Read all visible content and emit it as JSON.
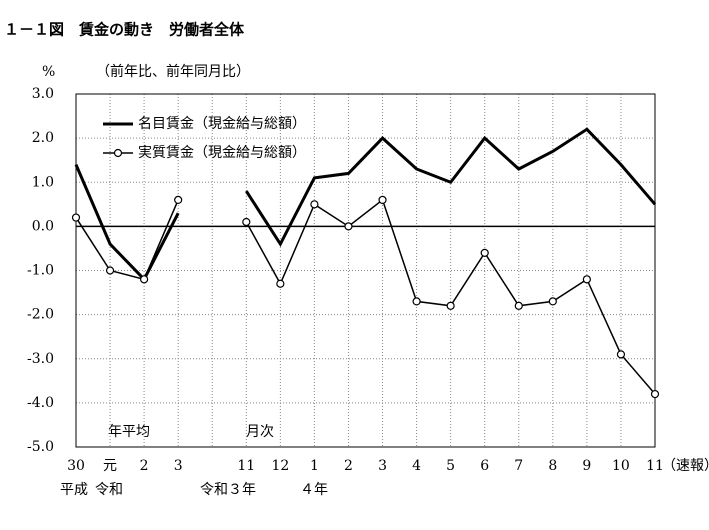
{
  "chart_data": {
    "type": "line",
    "title": "１－１図　賃金の動き　労働者全体",
    "y_unit": "%",
    "subtitle": "（前年比、前年同月比）",
    "categories": [
      "30",
      "元",
      "2",
      "3",
      null,
      "11",
      "12",
      "1",
      "2",
      "3",
      "4",
      "5",
      "6",
      "7",
      "8",
      "9",
      "10",
      "11"
    ],
    "series": [
      {
        "name": "名目賃金（現金給与総額）",
        "color": "#000000",
        "marker": false,
        "values": [
          1.4,
          -0.4,
          -1.2,
          0.3,
          null,
          0.8,
          -0.4,
          1.1,
          1.2,
          2.0,
          1.3,
          1.0,
          2.0,
          1.3,
          1.7,
          2.2,
          1.4,
          0.5
        ]
      },
      {
        "name": "実質賃金（現金給与総額）",
        "color": "#000000",
        "marker": true,
        "values": [
          0.2,
          -1.0,
          -1.2,
          0.6,
          null,
          0.1,
          -1.3,
          0.5,
          0.0,
          0.6,
          -1.7,
          -1.8,
          -0.6,
          -1.8,
          -1.7,
          -1.2,
          -2.9,
          -3.8
        ]
      }
    ],
    "ylim": [
      -5,
      3
    ],
    "yticks": [
      {
        "value": 3,
        "label": "3.0"
      },
      {
        "value": 2,
        "label": "2.0"
      },
      {
        "value": 1,
        "label": "1.0"
      },
      {
        "value": 0,
        "label": "0.0"
      },
      {
        "value": -1,
        "label": "-1.0"
      },
      {
        "value": -2,
        "label": "-2.0"
      },
      {
        "value": -3,
        "label": "-3.0"
      },
      {
        "value": -4,
        "label": "-4.0"
      },
      {
        "value": -5,
        "label": "-5.0"
      }
    ],
    "grid": true,
    "legend": "upper left",
    "section_labels": [
      "年平均",
      "月次"
    ],
    "era_labels": [
      "平成",
      "令和",
      "令和３年",
      "４年"
    ],
    "note": "（速報）"
  }
}
